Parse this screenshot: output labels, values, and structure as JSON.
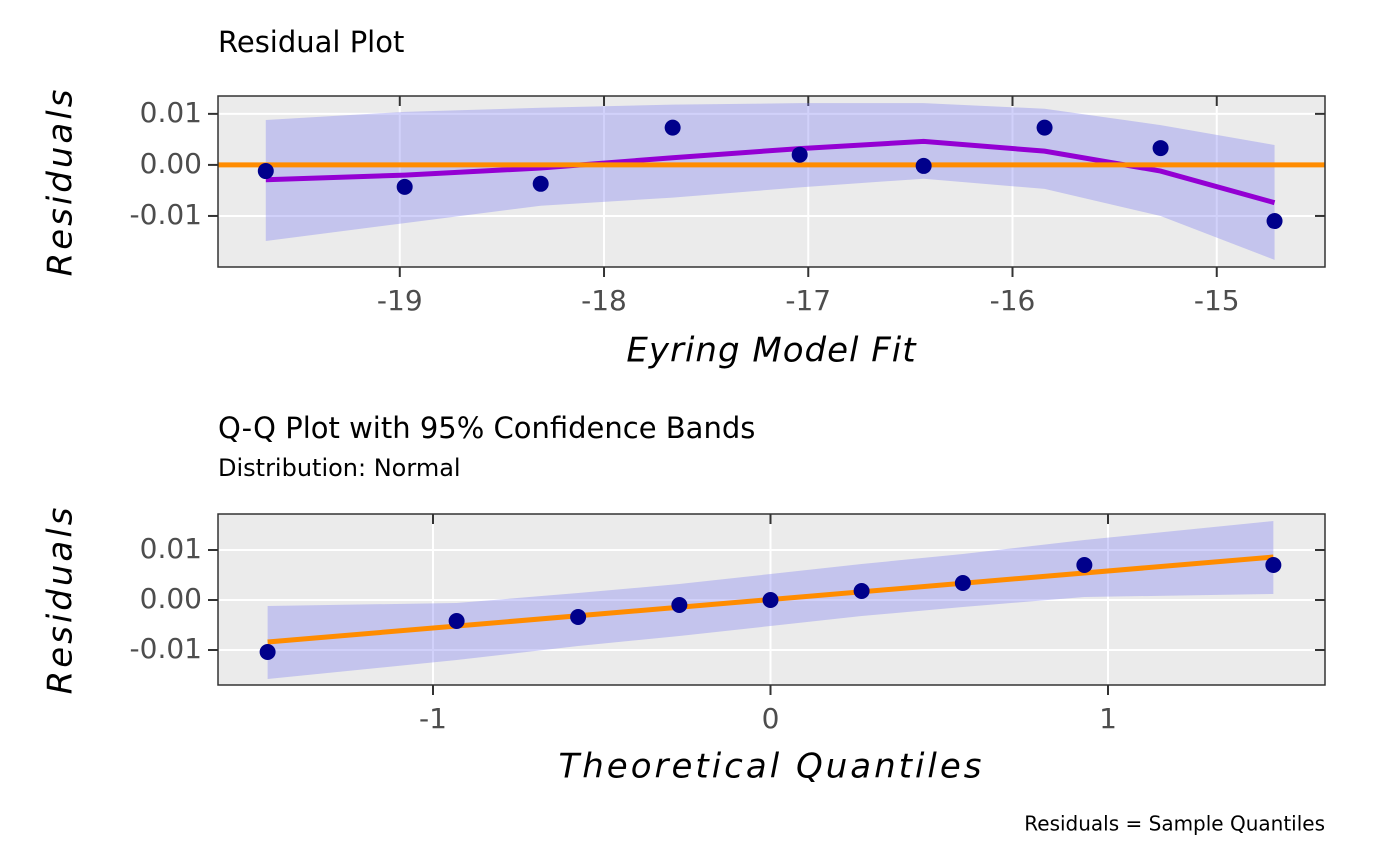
{
  "chart_data": [
    {
      "type": "scatter",
      "title": "Residual Plot",
      "x_label": "Eyring Model Fit",
      "y_label": "Residuals",
      "xlim": [
        -19.89,
        -14.47
      ],
      "ylim": [
        -0.02,
        0.0135
      ],
      "xticks": [
        -19,
        -18,
        -17,
        -16,
        -15
      ],
      "yticks": [
        -0.01,
        {
          "value": 0,
          "label": "0.00"
        },
        0.01
      ],
      "grid": true,
      "points": {
        "color": "#00008b",
        "x": [
          -19.656,
          -18.976,
          -18.31,
          -17.664,
          -17.042,
          -16.435,
          -15.843,
          -15.275,
          -14.717
        ],
        "y": [
          -0.0012,
          -0.0043,
          -0.0037,
          0.0073,
          0.002,
          -0.0002,
          0.0073,
          0.0033,
          -0.011
        ]
      },
      "fit": {
        "color": "#9400d3",
        "x": [
          -19.656,
          -18.976,
          -18.31,
          -17.664,
          -17.042,
          -16.435,
          -15.843,
          -15.275,
          -14.717
        ],
        "y": [
          -0.0029,
          -0.002,
          -0.0006,
          0.0014,
          0.0032,
          0.0046,
          0.0027,
          -0.0012,
          -0.0074
        ]
      },
      "band": {
        "color": "#7b7bf0",
        "x": [
          -19.656,
          -18.976,
          -18.31,
          -17.664,
          -17.042,
          -16.435,
          -15.843,
          -15.275,
          -14.717
        ],
        "upper": [
          0.0088,
          0.0104,
          0.0112,
          0.0118,
          0.0121,
          0.0121,
          0.011,
          0.0078,
          0.0039
        ],
        "lower": [
          -0.0149,
          -0.0114,
          -0.008,
          -0.0064,
          -0.0044,
          -0.0027,
          -0.0047,
          -0.01,
          -0.0186
        ]
      },
      "hline": {
        "value": 0,
        "color": "#ff8c00"
      }
    },
    {
      "type": "scatter",
      "title": "Q-Q Plot with 95% Confidence Bands",
      "subtitle": "Distribution: Normal",
      "x_label": "Theoretical Quantiles",
      "y_label": "Residuals",
      "caption": "Residuals = Sample Quantiles",
      "xlim": [
        -1.637,
        1.643
      ],
      "ylim": [
        -0.017,
        0.0172
      ],
      "xticks": [
        -1,
        0,
        1
      ],
      "yticks": [
        -0.01,
        {
          "value": 0,
          "label": "0.00"
        },
        0.01
      ],
      "grid": true,
      "points": {
        "color": "#00008b",
        "x": [
          -1.49,
          -0.93,
          -0.57,
          -0.27,
          0,
          0.27,
          0.57,
          0.93,
          1.49
        ],
        "y": [
          -0.0104,
          -0.0042,
          -0.0034,
          -0.001,
          0,
          0.0018,
          0.0034,
          0.007,
          0.007
        ]
      },
      "fit": {
        "color": "#ff8c00",
        "x": [
          -1.49,
          1.49
        ],
        "y": [
          -0.0084,
          0.0086
        ]
      },
      "band": {
        "color": "#7b7bf0",
        "x": [
          -1.49,
          -0.93,
          -0.57,
          -0.27,
          0,
          0.27,
          0.57,
          0.93,
          1.49
        ],
        "upper": [
          -0.0012,
          -0.0006,
          0.0014,
          0.0032,
          0.0052,
          0.0072,
          0.0092,
          0.012,
          0.0158
        ],
        "lower": [
          -0.0158,
          -0.012,
          -0.0092,
          -0.0072,
          -0.0052,
          -0.0032,
          -0.0014,
          0.0006,
          0.0012
        ]
      }
    }
  ]
}
